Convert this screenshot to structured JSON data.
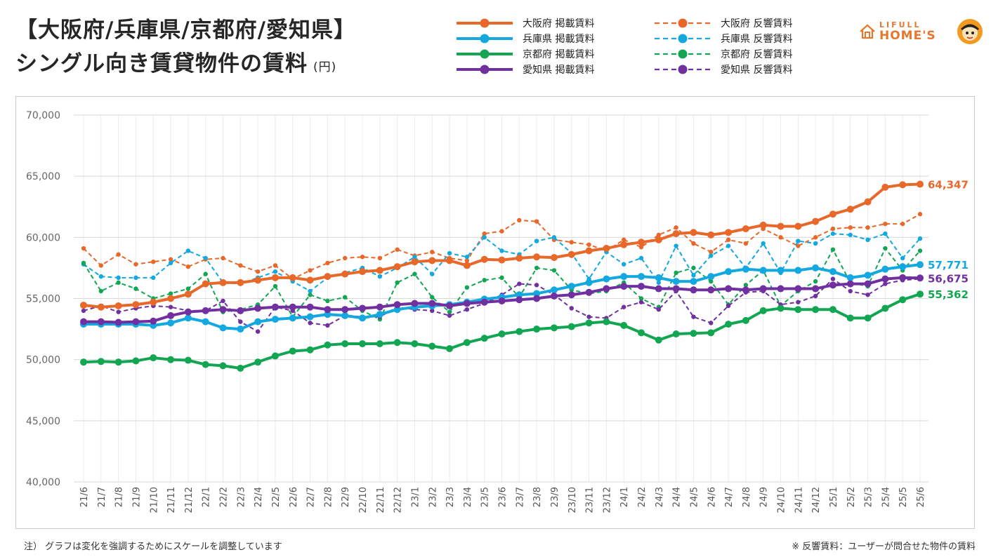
{
  "title": {
    "line1": "【大阪府/兵庫県/京都府/愛知県】",
    "line2": "シングル向き賃貸物件の賃料",
    "unit": "(円)"
  },
  "logo": {
    "top": "LIFULL",
    "bottom": "HOME'S"
  },
  "footnotes": {
    "left": "注） グラフは変化を強調するためにスケールを調整しています",
    "right": "※ 反響賃料：ユーザーが問合せた物件の賃料"
  },
  "chart_data": {
    "type": "line",
    "title": "シングル向き賃貸物件の賃料",
    "xlabel": "",
    "ylabel": "",
    "ylim": [
      40000,
      70000
    ],
    "yticks": [
      40000,
      45000,
      50000,
      55000,
      60000,
      65000,
      70000
    ],
    "ytick_labels": [
      "40,000",
      "45,000",
      "50,000",
      "55,000",
      "60,000",
      "65,000",
      "70,000"
    ],
    "grid": true,
    "legend_position": "top-center",
    "categories": [
      "21/6",
      "21/7",
      "21/8",
      "21/9",
      "21/10",
      "21/11",
      "21/12",
      "22/1",
      "22/2",
      "22/3",
      "22/4",
      "22/5",
      "22/6",
      "22/7",
      "22/8",
      "22/9",
      "22/10",
      "22/11",
      "22/12",
      "23/1",
      "23/2",
      "23/3",
      "23/4",
      "23/5",
      "23/6",
      "23/7",
      "23/8",
      "23/9",
      "23/10",
      "23/11",
      "23/12",
      "24/1",
      "24/2",
      "24/3",
      "24/4",
      "24/5",
      "24/6",
      "24/7",
      "24/8",
      "24/9",
      "24/10",
      "24/11",
      "24/12",
      "25/1",
      "25/2",
      "25/3",
      "25/4",
      "25/5",
      "25/6"
    ],
    "series": [
      {
        "name": "大阪府 掲載賃料",
        "color": "#e8682a",
        "style": "solid",
        "end_label": "64,347",
        "values": [
          54450,
          54300,
          54400,
          54500,
          54700,
          55000,
          55350,
          56200,
          56300,
          56300,
          56500,
          56700,
          56700,
          56500,
          56800,
          57000,
          57200,
          57300,
          57600,
          58000,
          58100,
          58100,
          57700,
          58200,
          58150,
          58300,
          58400,
          58350,
          58600,
          58900,
          59100,
          59400,
          59600,
          59800,
          60300,
          60400,
          60200,
          60400,
          60700,
          61000,
          60900,
          60900,
          61300,
          61900,
          62300,
          62900,
          64100,
          64300,
          64347
        ]
      },
      {
        "name": "兵庫県 掲載賃料",
        "color": "#13a8e0",
        "style": "solid",
        "end_label": "57,771",
        "values": [
          52900,
          52900,
          52900,
          52900,
          52800,
          53000,
          53400,
          53100,
          52600,
          52500,
          53100,
          53300,
          53400,
          53500,
          53700,
          53600,
          53400,
          53700,
          54100,
          54300,
          54400,
          54500,
          54700,
          54950,
          55100,
          55300,
          55400,
          55700,
          56000,
          56300,
          56600,
          56800,
          56800,
          56700,
          56400,
          56400,
          56800,
          57200,
          57400,
          57300,
          57300,
          57300,
          57500,
          57200,
          56700,
          56900,
          57400,
          57600,
          57771
        ]
      },
      {
        "name": "京都府 掲載賃料",
        "color": "#12a653",
        "style": "solid",
        "end_label": "55,362",
        "values": [
          49800,
          49850,
          49800,
          49900,
          50150,
          50000,
          49950,
          49600,
          49500,
          49300,
          49800,
          50300,
          50700,
          50800,
          51200,
          51300,
          51300,
          51300,
          51400,
          51300,
          51100,
          50900,
          51400,
          51750,
          52100,
          52300,
          52500,
          52600,
          52700,
          53000,
          53100,
          52800,
          52200,
          51600,
          52100,
          52150,
          52200,
          52900,
          53200,
          54000,
          54200,
          54100,
          54100,
          54100,
          53400,
          53400,
          54200,
          54900,
          55362
        ]
      },
      {
        "name": "愛知県 掲載賃料",
        "color": "#7030a0",
        "style": "solid",
        "end_label": "56,675",
        "values": [
          53100,
          53100,
          53050,
          53100,
          53150,
          53600,
          53900,
          54000,
          54100,
          54000,
          54200,
          54300,
          54300,
          54300,
          54100,
          54100,
          54200,
          54300,
          54500,
          54600,
          54600,
          54400,
          54600,
          54700,
          54800,
          54900,
          55000,
          55200,
          55300,
          55500,
          55800,
          56000,
          56000,
          55800,
          55800,
          55700,
          55700,
          55800,
          55700,
          55800,
          55800,
          55800,
          55800,
          56100,
          56200,
          56200,
          56600,
          56700,
          56675
        ]
      },
      {
        "name": "大阪府 反響賃料",
        "color": "#e8682a",
        "style": "dashed",
        "values": [
          59100,
          57700,
          58600,
          57800,
          58000,
          58200,
          57600,
          58200,
          58300,
          57700,
          57200,
          57700,
          56600,
          57300,
          57900,
          58300,
          58400,
          58300,
          59000,
          58500,
          58800,
          58300,
          58100,
          60300,
          60500,
          61400,
          61300,
          59800,
          59600,
          59400,
          58900,
          59800,
          59200,
          60200,
          60800,
          59500,
          58800,
          59800,
          59500,
          60700,
          60000,
          59300,
          60000,
          60700,
          60800,
          60800,
          61100,
          61100,
          61900
        ]
      },
      {
        "name": "兵庫県 反響賃料",
        "color": "#13a8e0",
        "style": "dashed",
        "values": [
          57800,
          56800,
          56700,
          56700,
          56700,
          57900,
          58900,
          58300,
          56300,
          56200,
          56700,
          57200,
          56400,
          55600,
          56700,
          57100,
          57500,
          56800,
          57500,
          58400,
          57000,
          58700,
          58400,
          60000,
          58900,
          58600,
          59700,
          60000,
          58700,
          56600,
          58800,
          57800,
          58300,
          56300,
          59300,
          56900,
          58500,
          59300,
          57500,
          59500,
          57100,
          59700,
          59500,
          60300,
          60200,
          59800,
          60300,
          58300,
          59900
        ]
      },
      {
        "name": "京都府 反響賃料",
        "color": "#12a653",
        "style": "dashed",
        "values": [
          57900,
          55600,
          56300,
          55800,
          55000,
          55400,
          55800,
          57000,
          53900,
          54100,
          54500,
          56000,
          53500,
          55300,
          54800,
          55100,
          54000,
          53300,
          56300,
          57000,
          55100,
          53900,
          55900,
          56500,
          56700,
          55100,
          57500,
          57300,
          55700,
          55400,
          55600,
          56300,
          55000,
          54300,
          57100,
          57500,
          56400,
          54500,
          56100,
          57300,
          54400,
          55600,
          56400,
          59000,
          56300,
          56000,
          59100,
          57300,
          58900
        ]
      },
      {
        "name": "愛知県 反響賃料",
        "color": "#7030a0",
        "style": "dashed",
        "values": [
          54000,
          54400,
          53900,
          54200,
          54400,
          54300,
          54000,
          54000,
          54800,
          53100,
          52300,
          54300,
          54000,
          53000,
          52800,
          53600,
          53500,
          53500,
          54300,
          54100,
          54000,
          53600,
          54100,
          54600,
          55300,
          56200,
          56100,
          55300,
          54200,
          53500,
          53400,
          54300,
          54700,
          54100,
          55600,
          53500,
          53000,
          54400,
          55500,
          55600,
          54500,
          54700,
          55200,
          56600,
          55600,
          55300,
          56200,
          56500,
          56600
        ]
      }
    ]
  }
}
